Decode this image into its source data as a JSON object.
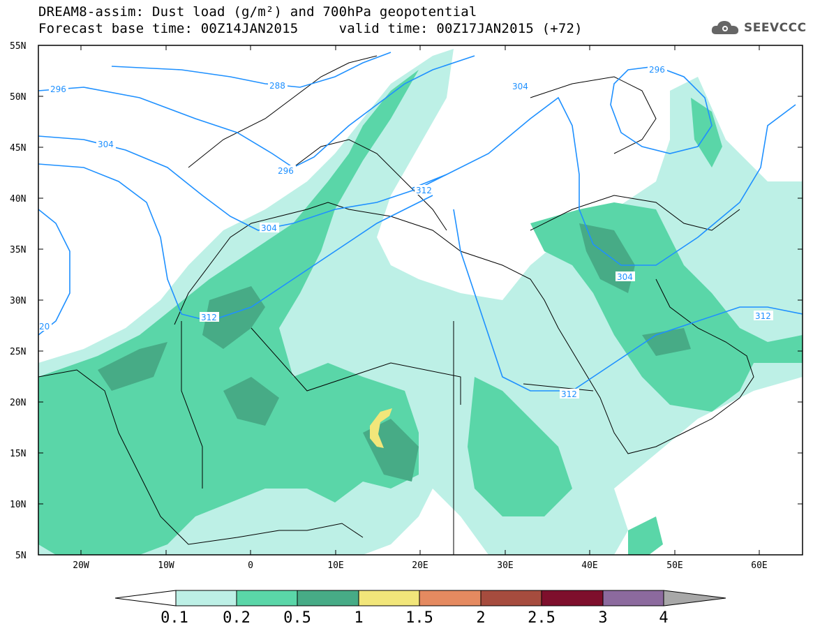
{
  "title": {
    "line1": "DREAM8-assim: Dust load (g/m²) and 700hPa geopotential",
    "line2_left": "Forecast base time: 00Z14JAN2015",
    "line2_right": "valid time: 00Z17JAN2015 (+72)"
  },
  "logo": {
    "text": "SEEVCCC",
    "icon": "cloud-gear-icon"
  },
  "map": {
    "lon_range": [
      -25,
      65
    ],
    "lat_range": [
      5,
      55
    ],
    "lat_labels": [
      "55N",
      "50N",
      "45N",
      "40N",
      "35N",
      "30N",
      "25N",
      "20N",
      "15N",
      "10N",
      "5N"
    ],
    "lon_labels": [
      "20W",
      "10W",
      "0",
      "10E",
      "20E",
      "30E",
      "40E",
      "50E",
      "60E"
    ],
    "contour_labels": [
      "296",
      "304",
      "288",
      "296",
      "304",
      "312",
      "296",
      "304",
      "304",
      "312",
      "312",
      "312",
      "20"
    ],
    "contour_color": "#1e90ff"
  },
  "colorbar": {
    "labels": [
      "0.1",
      "0.2",
      "0.5",
      "1",
      "1.5",
      "2",
      "2.5",
      "3",
      "4"
    ],
    "colors": [
      "#ffffff",
      "#bdf0e6",
      "#5ad6a8",
      "#47ab86",
      "#f2e67a",
      "#e58a60",
      "#a64c3e",
      "#7e0f2c",
      "#8c6a9e",
      "#a8a8a8"
    ]
  }
}
